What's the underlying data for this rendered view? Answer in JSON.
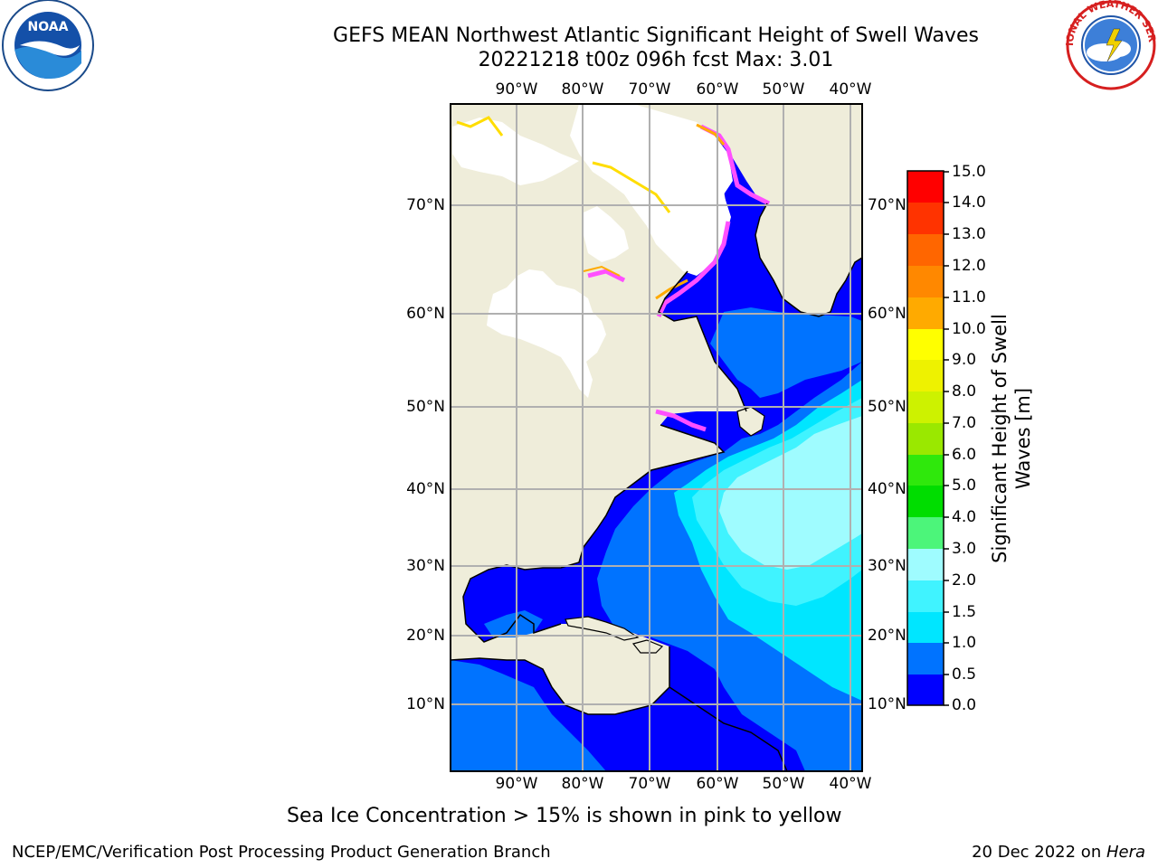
{
  "title": {
    "line1": "GEFS MEAN Northwest Atlantic Significant Height of Swell Waves",
    "line2": "20221218 t00z 096h fcst   Max: 3.01"
  },
  "map": {
    "lon_ticks": [
      "90°W",
      "80°W",
      "70°W",
      "60°W",
      "50°W",
      "40°W"
    ],
    "lat_ticks_left": [
      "70°N",
      "60°N",
      "50°N",
      "40°N",
      "30°N",
      "20°N",
      "10°N"
    ],
    "lat_ticks_right": [
      "70°N",
      "60°N",
      "50°N",
      "40°N",
      "30°N",
      "20°N",
      "10°N"
    ],
    "colors": {
      "land": "#efedda",
      "ice": "#ffffff",
      "grid": "#b0b0b0",
      "wave_0_0.5": "#0000ff",
      "wave_0.5_1.0": "#0073ff",
      "wave_1.0_1.5": "#00e6ff",
      "wave_1.5_2.0": "#40f3ff",
      "wave_2.0_3.0": "#9ffcff",
      "ice_edge": "#ff50ff"
    }
  },
  "colorbar": {
    "label": "Significant Height of Swell Waves [m]",
    "ticks": [
      "15.0",
      "14.0",
      "13.0",
      "12.0",
      "11.0",
      "10.0",
      "9.0",
      "8.0",
      "7.0",
      "6.0",
      "5.0",
      "4.0",
      "3.0",
      "2.0",
      "1.5",
      "1.0",
      "0.5",
      "0.0"
    ],
    "colors": [
      "#0000ff",
      "#0073ff",
      "#00e6ff",
      "#40f3ff",
      "#9ffcff",
      "#4cf57a",
      "#00dd00",
      "#2fe80c",
      "#9ae800",
      "#cdf200",
      "#eef200",
      "#ffff00",
      "#ffdd00",
      "#ffaa00",
      "#ff8800",
      "#ff6600",
      "#ff3300",
      "#ff0000"
    ]
  },
  "caption": "Sea Ice Concentration > 15% is shown in pink to yellow",
  "footer": {
    "left": "NCEP/EMC/Verification Post Processing Product Generation Branch",
    "right_date": "20 Dec 2022 on ",
    "right_host": "Hera"
  },
  "logos": {
    "left_text": "NOAA",
    "right_text": "NATIONAL WEATHER SERVICE"
  }
}
